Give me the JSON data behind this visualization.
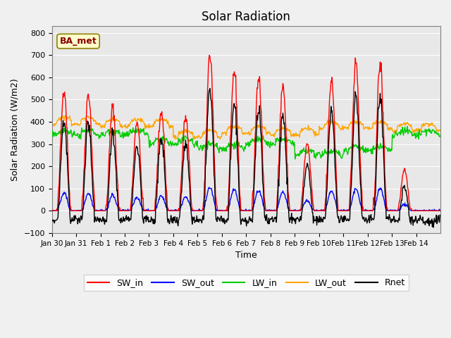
{
  "title": "Solar Radiation",
  "xlabel": "Time",
  "ylabel": "Solar Radiation (W/m2)",
  "ylim": [
    -100,
    830
  ],
  "yticks": [
    -100,
    0,
    100,
    200,
    300,
    400,
    500,
    600,
    700,
    800
  ],
  "date_labels": [
    "Jan 30",
    "Jan 31",
    "Feb 1",
    "Feb 2",
    "Feb 3",
    "Feb 4",
    "Feb 5",
    "Feb 6",
    "Feb 7",
    "Feb 8",
    "Feb 9",
    "Feb 10",
    "Feb 11",
    "Feb 12",
    "Feb 13",
    "Feb 14"
  ],
  "site_label": "BA_met",
  "colors": {
    "SW_in": "#ff0000",
    "SW_out": "#0000ff",
    "LW_in": "#00cc00",
    "LW_out": "#ffa500",
    "Rnet": "#000000"
  },
  "background_color": "#f0f0f0",
  "plot_bg_color": "#e8e8e8",
  "day_peaks": [
    550,
    530,
    465,
    405,
    450,
    420,
    710,
    630,
    600,
    565,
    300,
    590,
    665,
    660,
    180,
    0
  ],
  "n_days": 16,
  "n_per_day": 48
}
